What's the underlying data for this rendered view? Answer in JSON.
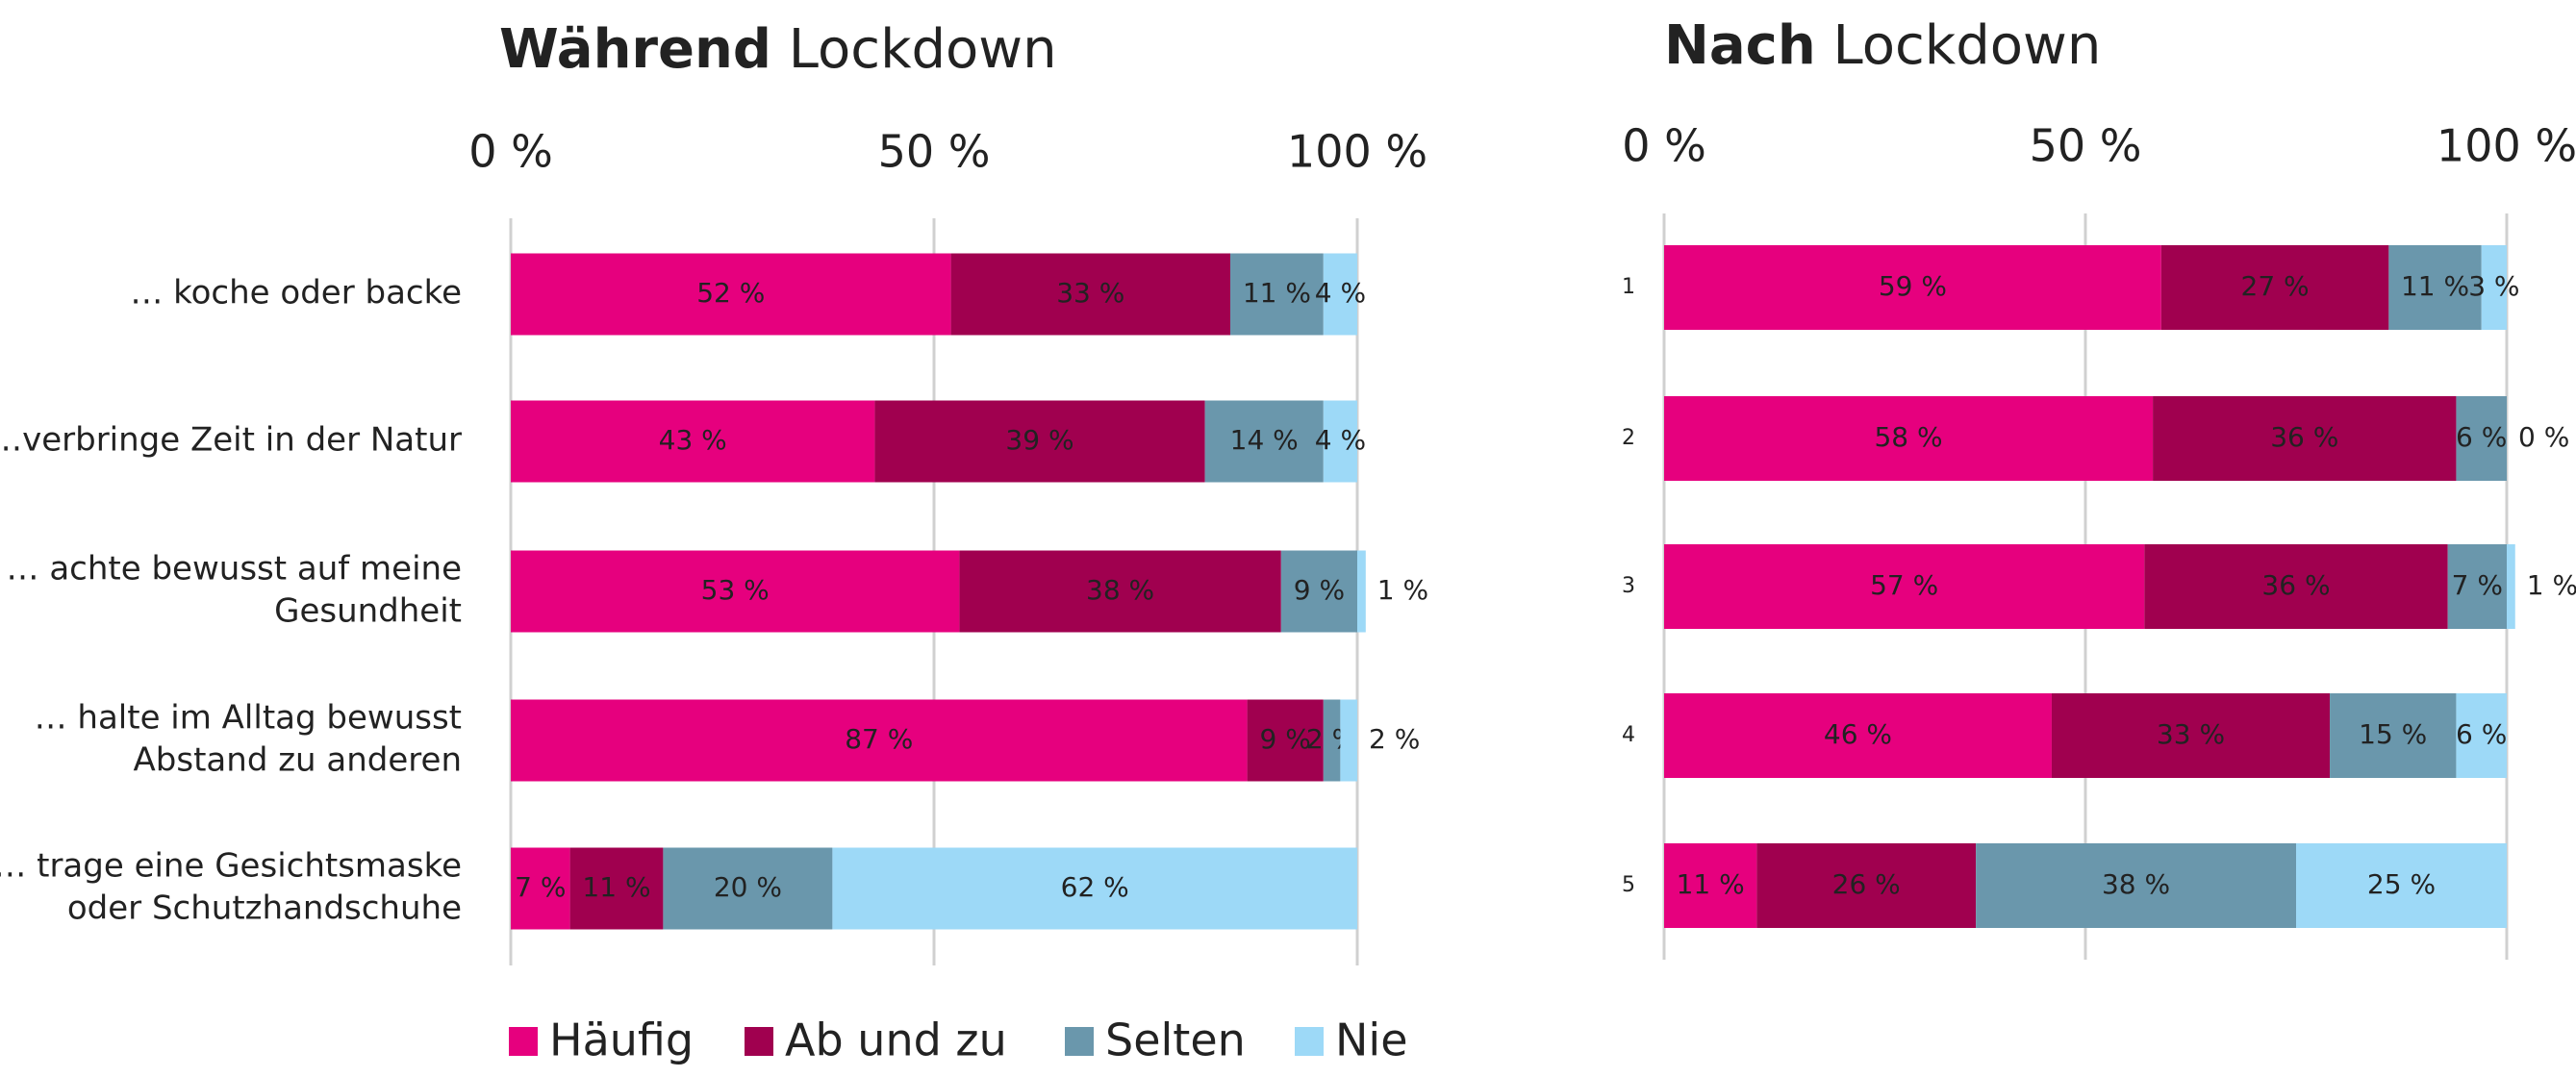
{
  "chart_data": [
    {
      "type": "stacked-bar",
      "title": [
        "Während",
        "Lockdown"
      ],
      "categories": [
        [
          "… koche oder backe"
        ],
        [
          "…verbringe Zeit in der Natur"
        ],
        [
          "… achte bewusst auf meine",
          "Gesundheit"
        ],
        [
          "… halte im Alltag bewusst",
          "Abstand zu anderen"
        ],
        [
          "… trage eine Gesichtsmaske",
          "oder Schutzhandschuhe"
        ]
      ],
      "xlim": [
        0,
        100
      ],
      "xticks": [
        {
          "value": 0,
          "label": "0 %"
        },
        {
          "value": 50,
          "label": "50 %"
        },
        {
          "value": 100,
          "label": "100 %"
        }
      ],
      "grid": true,
      "legend": "bottom",
      "series": [
        {
          "name": "Häufig",
          "color": "#e6007e",
          "values": [
            52,
            43,
            53,
            87,
            7
          ],
          "value_labels": [
            "52 %",
            "43 %",
            "53 %",
            "87 %",
            "7 %"
          ]
        },
        {
          "name": "Ab und zu",
          "color": "#a0004f",
          "values": [
            33,
            39,
            38,
            9,
            11
          ],
          "value_labels": [
            "33 %",
            "39 %",
            "38 %",
            "9 %",
            "11 %"
          ]
        },
        {
          "name": "Selten",
          "color": "#6a97ac",
          "values": [
            11,
            14,
            9,
            2,
            20
          ],
          "value_labels": [
            "11 %",
            "14 %",
            "9 %",
            "2 %",
            "20 %"
          ]
        },
        {
          "name": "Nie",
          "color": "#9dd9f7",
          "values": [
            4,
            4,
            1,
            2,
            62
          ],
          "value_labels": [
            "4 %",
            "4 %",
            "1 %",
            "2 %",
            "62 %"
          ]
        }
      ]
    },
    {
      "type": "stacked-bar",
      "title": [
        "Nach",
        "Lockdown"
      ],
      "categories": [
        "1",
        "2",
        "3",
        "4",
        "5"
      ],
      "xlim": [
        0,
        100
      ],
      "xticks": [
        {
          "value": 0,
          "label": "0 %"
        },
        {
          "value": 50,
          "label": "50 %"
        },
        {
          "value": 100,
          "label": "100 %"
        }
      ],
      "grid": true,
      "series": [
        {
          "color": "#e6007e",
          "values": [
            59,
            58,
            57,
            46,
            11
          ],
          "value_labels": [
            "59 %",
            "58 %",
            "57 %",
            "46 %",
            "11 %"
          ]
        },
        {
          "color": "#a0004f",
          "values": [
            27,
            36,
            36,
            33,
            26
          ],
          "value_labels": [
            "27 %",
            "36 %",
            "36 %",
            "33 %",
            "26 %"
          ]
        },
        {
          "color": "#6a97ac",
          "values": [
            11,
            6,
            7,
            15,
            38
          ],
          "value_labels": [
            "11 %",
            "6 %",
            "7 %",
            "15 %",
            "38 %"
          ]
        },
        {
          "color": "#9dd9f7",
          "values": [
            3,
            0,
            1,
            6,
            25
          ],
          "value_labels": [
            "3 %",
            "0 %",
            "1 %",
            "6 %",
            "25 %"
          ]
        }
      ]
    }
  ]
}
